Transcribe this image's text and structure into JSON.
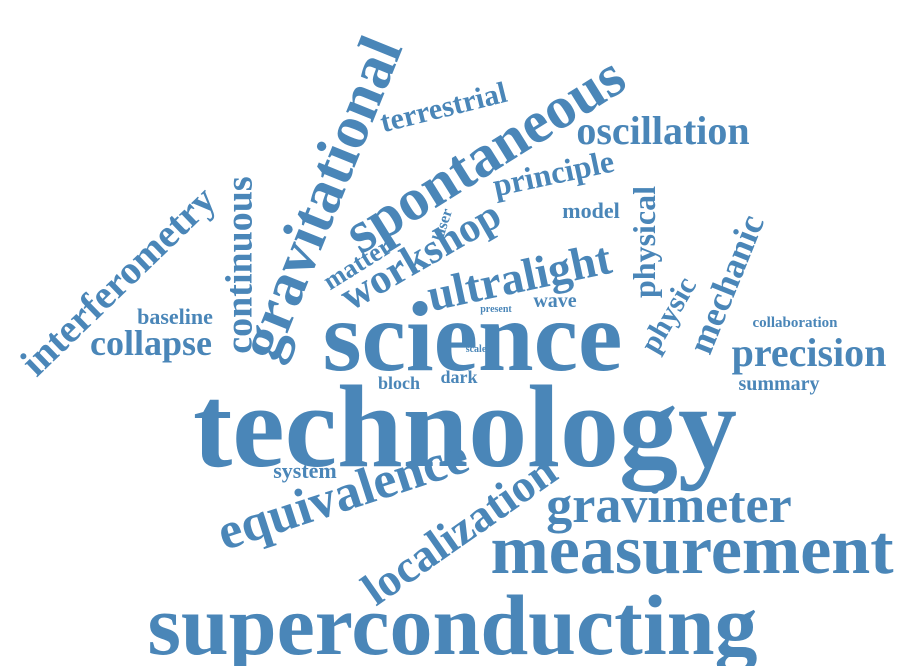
{
  "color": "#4a86b8",
  "words": [
    {
      "id": "technology",
      "text": "technology"
    },
    {
      "id": "science",
      "text": "science"
    },
    {
      "id": "superconducting",
      "text": "superconducting"
    },
    {
      "id": "measurement",
      "text": "measurement"
    },
    {
      "id": "gravitational",
      "text": "gravitational"
    },
    {
      "id": "spontaneous",
      "text": "spontaneous"
    },
    {
      "id": "equivalence",
      "text": "equivalence"
    },
    {
      "id": "localization",
      "text": "localization"
    },
    {
      "id": "gravimeter",
      "text": "gravimeter"
    },
    {
      "id": "ultralight",
      "text": "ultralight"
    },
    {
      "id": "workshop",
      "text": "workshop"
    },
    {
      "id": "interferometry",
      "text": "interferometry"
    },
    {
      "id": "continuous",
      "text": "continuous"
    },
    {
      "id": "precision",
      "text": "precision"
    },
    {
      "id": "oscillation",
      "text": "oscillation"
    },
    {
      "id": "mechanic",
      "text": "mechanic"
    },
    {
      "id": "collapse",
      "text": "collapse"
    },
    {
      "id": "terrestrial",
      "text": "terrestrial"
    },
    {
      "id": "principle",
      "text": "principle"
    },
    {
      "id": "physical",
      "text": "physical"
    },
    {
      "id": "physic",
      "text": "physic"
    },
    {
      "id": "matter",
      "text": "matter"
    },
    {
      "id": "baseline",
      "text": "baseline"
    },
    {
      "id": "system",
      "text": "system"
    },
    {
      "id": "summary",
      "text": "summary"
    },
    {
      "id": "model",
      "text": "model"
    },
    {
      "id": "collaboration",
      "text": "collaboration"
    },
    {
      "id": "wave",
      "text": "wave"
    },
    {
      "id": "dark",
      "text": "dark"
    },
    {
      "id": "bloch",
      "text": "bloch"
    },
    {
      "id": "laser",
      "text": "laser"
    },
    {
      "id": "present",
      "text": "present"
    },
    {
      "id": "scale",
      "text": "scale"
    }
  ]
}
